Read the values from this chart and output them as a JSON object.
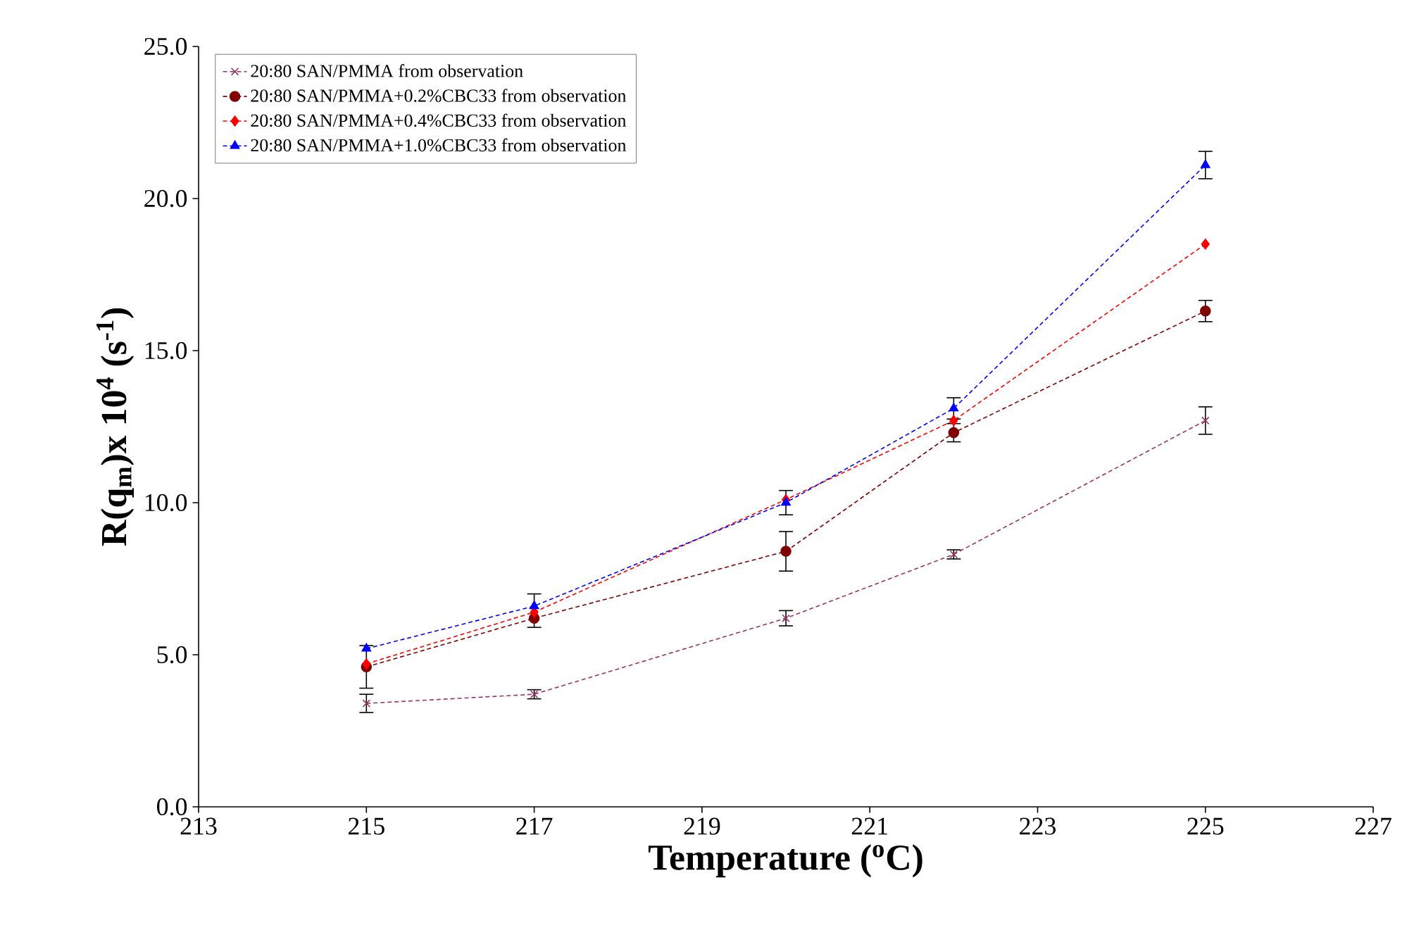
{
  "chart_data": {
    "type": "line",
    "xlabel": "Temperature ($^{o}$C)",
    "ylabel": "R(q$_{m}$)x 10$^{4}$ (s$^{-1}$)",
    "x": [
      215,
      217,
      220,
      222,
      225
    ],
    "series": [
      {
        "name": "20:80 SAN/PMMA from observation",
        "color": "#993366",
        "marker": "cross",
        "values": [
          3.4,
          3.7,
          6.2,
          8.3,
          12.7
        ],
        "errors": [
          0.3,
          0.15,
          0.25,
          0.15,
          0.45
        ]
      },
      {
        "name": "20:80 SAN/PMMA+0.2%CBC33 from observation",
        "color": "#800000",
        "marker": "circle",
        "values": [
          4.6,
          6.2,
          8.4,
          12.3,
          16.3
        ],
        "errors": [
          0.7,
          null,
          0.65,
          0.3,
          0.35
        ]
      },
      {
        "name": "20:80 SAN/PMMA+0.4%CBC33 from observation",
        "color": "#ff0000",
        "marker": "diamond",
        "values": [
          4.7,
          6.4,
          10.1,
          12.7,
          18.5
        ]
      },
      {
        "name": "20:80 SAN/PMMA+1.0%CBC33 from observation",
        "color": "#0000ff",
        "marker": "triangle",
        "values": [
          5.2,
          6.6,
          10.0,
          13.1,
          21.1
        ],
        "errors": [
          null,
          [
            5.9,
            7.0
          ],
          0.4,
          0.35,
          0.45
        ]
      }
    ],
    "line_style": "dashed",
    "legend": "top left",
    "grid": false,
    "xlim": [
      213,
      227
    ],
    "xticks": [
      213,
      215,
      217,
      219,
      221,
      223,
      225,
      227
    ],
    "ylim": [
      0,
      25
    ],
    "yticks": [
      {
        "value": 0,
        "label": "0.0"
      },
      {
        "value": 5,
        "label": "5.0"
      },
      {
        "value": 10,
        "label": "10.0"
      },
      {
        "value": 15,
        "label": "15.0"
      },
      {
        "value": 20,
        "label": "20.0"
      },
      {
        "value": 25,
        "label": "25.0"
      }
    ]
  }
}
